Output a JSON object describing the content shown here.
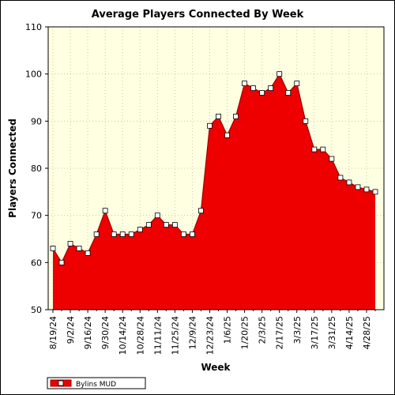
{
  "chart_data": {
    "type": "area",
    "title": "Average Players Connected By Week",
    "xlabel": "Week",
    "ylabel": "Players Connected",
    "ylim": [
      50,
      110
    ],
    "y_ticks": [
      "50",
      "60",
      "70",
      "80",
      "90",
      "100",
      "110"
    ],
    "grid": true,
    "legend_position": "bottom-left",
    "x_tick_labels": [
      "8/19/24",
      "9/2/24",
      "9/16/24",
      "9/30/24",
      "10/14/24",
      "10/28/24",
      "11/11/24",
      "11/25/24",
      "12/9/24",
      "12/23/24",
      "1/6/25",
      "1/20/25",
      "2/3/25",
      "2/17/25",
      "3/3/25",
      "3/17/25",
      "3/31/25",
      "4/14/25",
      "4/28/25"
    ],
    "colors": {
      "plot_background": "#ffffe1",
      "area_fill": "#ee0000",
      "outline": "#990000",
      "marker_fill": "#ffffff"
    },
    "series": [
      {
        "name": "Bylins MUD",
        "x": [
          "8/19/24",
          "8/26/24",
          "9/2/24",
          "9/9/24",
          "9/16/24",
          "9/23/24",
          "9/30/24",
          "10/7/24",
          "10/14/24",
          "10/21/24",
          "10/28/24",
          "11/4/24",
          "11/11/24",
          "11/18/24",
          "11/25/24",
          "12/2/24",
          "12/9/24",
          "12/16/24",
          "12/23/24",
          "12/30/24",
          "1/6/25",
          "1/13/25",
          "1/20/25",
          "1/27/25",
          "2/3/25",
          "2/10/25",
          "2/17/25",
          "2/24/25",
          "3/3/25",
          "3/10/25",
          "3/17/25",
          "3/24/25",
          "3/31/25",
          "4/7/25",
          "4/14/25",
          "4/21/25",
          "4/28/25",
          "5/5/25"
        ],
        "values": [
          63,
          60,
          64,
          63,
          62,
          66,
          71,
          66,
          66,
          66,
          67,
          68,
          70,
          68,
          68,
          66,
          66,
          71,
          89,
          91,
          87,
          91,
          98,
          97,
          96,
          97,
          100,
          96,
          98,
          90,
          84,
          84,
          82,
          78,
          77,
          76,
          75.5,
          75
        ]
      }
    ]
  }
}
